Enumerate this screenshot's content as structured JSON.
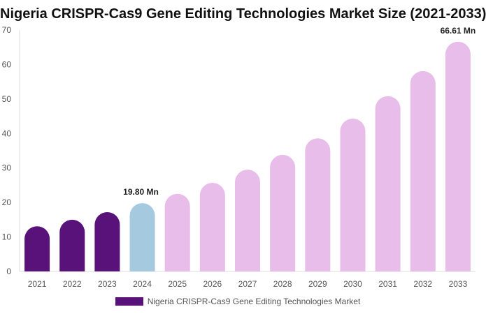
{
  "chart_data": {
    "type": "bar",
    "title": "Nigeria CRISPR-Cas9 Gene Editing Technologies Market Size (2021-2033)",
    "categories": [
      "2021",
      "2022",
      "2023",
      "2024",
      "2025",
      "2026",
      "2027",
      "2028",
      "2029",
      "2030",
      "2031",
      "2032",
      "2033"
    ],
    "series": [
      {
        "name": "Nigeria CRISPR-Cas9 Gene Editing Technologies Market",
        "values": [
          13.1,
          15.0,
          17.2,
          19.8,
          22.5,
          25.7,
          29.5,
          33.8,
          38.6,
          44.3,
          50.8,
          58.1,
          66.61
        ]
      }
    ],
    "data_labels": [
      {
        "category": "2024",
        "text": "19.80 Mn"
      },
      {
        "category": "2033",
        "text": "66.61 Mn"
      }
    ],
    "ylim": [
      0,
      70
    ],
    "yticks": [
      0,
      10,
      20,
      30,
      40,
      50,
      60,
      70
    ],
    "grid": false,
    "legend": "bottom",
    "colors": {
      "historical": "#58127a",
      "current": "#a5cadf",
      "forecast": "#e8bde9"
    }
  }
}
